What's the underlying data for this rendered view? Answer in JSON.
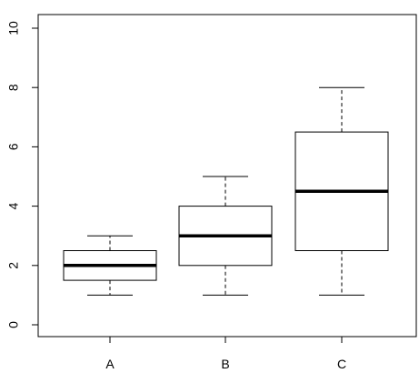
{
  "chart_data": {
    "type": "boxplot",
    "title": "",
    "xlabel": "",
    "ylabel": "",
    "ylim": [
      0,
      10
    ],
    "yticks": [
      "0",
      "2",
      "4",
      "6",
      "8",
      "10"
    ],
    "categories": [
      "A",
      "B",
      "C"
    ],
    "boxes": [
      {
        "name": "A",
        "min": 1,
        "q1": 1.5,
        "median": 2,
        "q3": 2.5,
        "max": 3
      },
      {
        "name": "B",
        "min": 1,
        "q1": 2,
        "median": 3,
        "q3": 4,
        "max": 5
      },
      {
        "name": "C",
        "min": 1,
        "q1": 2.5,
        "median": 4.5,
        "q3": 6.5,
        "max": 8
      }
    ],
    "grid": false,
    "legend": "none"
  }
}
